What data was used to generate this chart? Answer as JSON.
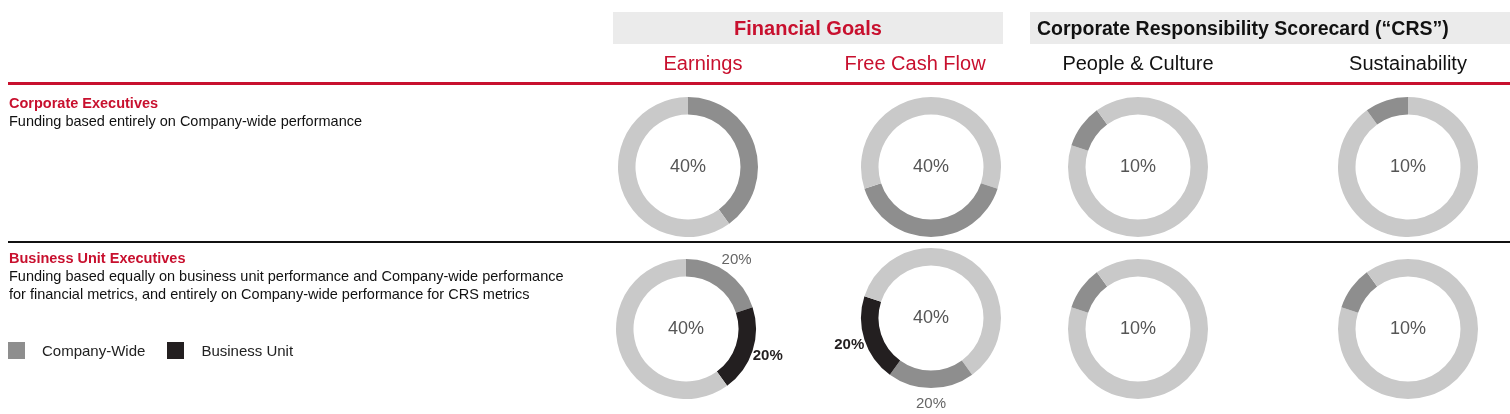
{
  "chart_data": [
    {
      "type": "other",
      "annotations": [
        "Financial Goals",
        "Corporate Responsibility Scorecard (“CRS”)"
      ]
    },
    {
      "type": "other",
      "title": "Corporate Executives",
      "subtitle": "Funding based entirely on Company-wide performance"
    },
    {
      "type": "donut",
      "title": "Earnings",
      "categories": [
        null,
        null
      ],
      "values": [
        40,
        60
      ],
      "colors": [
        "#8e8e8e",
        "#c9c9c9"
      ],
      "annotations": [
        "40%"
      ]
    },
    {
      "type": "donut",
      "title": "Free Cash Flow",
      "categories": [
        null,
        null,
        null
      ],
      "values": [
        30,
        40,
        30
      ],
      "colors": [
        "#c9c9c9",
        "#8e8e8e",
        "#c9c9c9"
      ],
      "annotations": [
        "40%"
      ]
    },
    {
      "type": "donut",
      "title": "People & Culture",
      "categories": [
        null,
        null,
        null
      ],
      "values": [
        80,
        10,
        10
      ],
      "colors": [
        "#c9c9c9",
        "#8e8e8e",
        "#c9c9c9"
      ],
      "annotations": [
        "10%"
      ]
    },
    {
      "type": "donut",
      "title": "Sustainability",
      "categories": [
        null,
        null
      ],
      "values": [
        90,
        10
      ],
      "colors": [
        "#c9c9c9",
        "#8e8e8e"
      ],
      "annotations": [
        "10%"
      ]
    },
    {
      "type": "other",
      "title": "Business Unit Executives",
      "subtitle": "Funding based equally on business unit performance and Company-wide performance for financial metrics, and entirely on Company-wide performance for CRS metrics"
    },
    {
      "type": "donut",
      "categories": [
        "Company-Wide",
        "Business Unit",
        null
      ],
      "values": [
        20,
        20,
        60
      ],
      "colors": [
        "#8e8e8e",
        "#231f20",
        "#c9c9c9"
      ],
      "value_labels": [
        "20%",
        "20%",
        null
      ],
      "annotations": [
        "40%"
      ],
      "legend": "left"
    },
    {
      "type": "donut",
      "categories": [
        null,
        null,
        null,
        null
      ],
      "values": [
        40,
        20,
        20,
        20
      ],
      "colors": [
        "#c9c9c9",
        "#8e8e8e",
        "#231f20",
        "#c9c9c9"
      ],
      "value_labels": [
        null,
        "20%",
        "20%",
        null
      ],
      "annotations": [
        "40%"
      ]
    },
    {
      "type": "donut",
      "categories": [
        null,
        null,
        null
      ],
      "values": [
        80,
        10,
        10
      ],
      "colors": [
        "#c9c9c9",
        "#8e8e8e",
        "#c9c9c9"
      ],
      "annotations": [
        "10%"
      ]
    },
    {
      "type": "donut",
      "categories": [
        null,
        null,
        null
      ],
      "values": [
        80,
        10,
        10
      ],
      "colors": [
        "#c9c9c9",
        "#8e8e8e",
        "#c9c9c9"
      ],
      "annotations": [
        "10%"
      ]
    }
  ]
}
